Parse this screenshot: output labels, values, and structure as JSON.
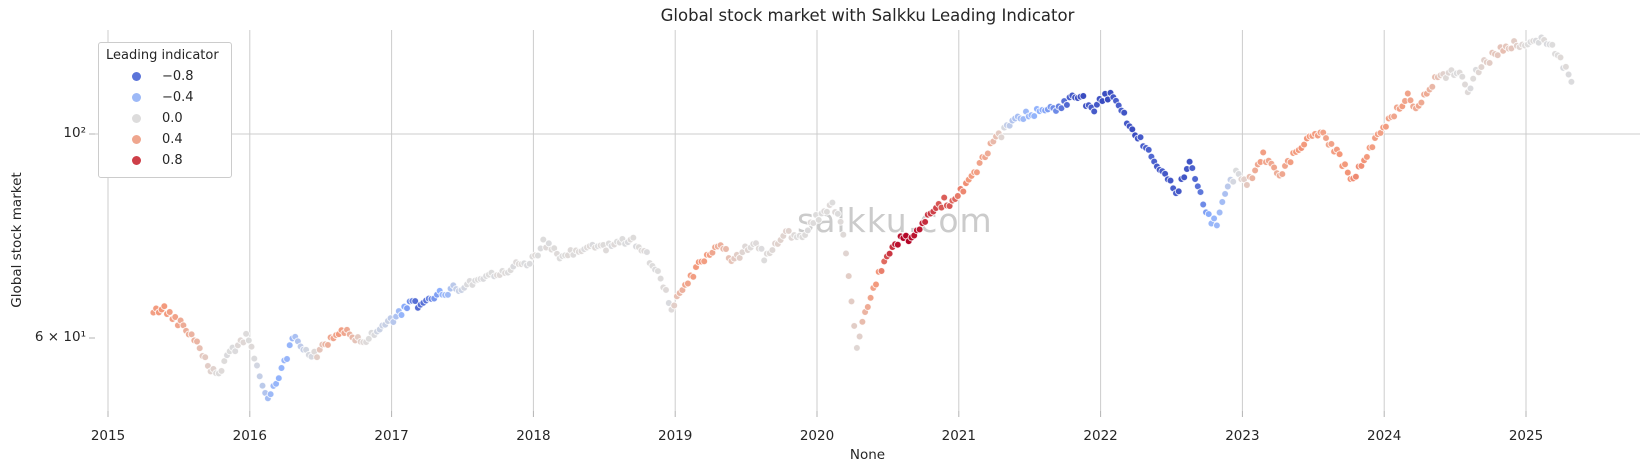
{
  "figure": {
    "watermark": "salkku.com",
    "background_color": "#ffffff",
    "grid_color": "#cccccc",
    "tick_color": "#b3b3b3",
    "text_color": "#262626",
    "watermark_color": "#cbcbcb"
  },
  "chart_data": {
    "type": "scatter",
    "title": "Global stock market with Salkku Leading Indicator",
    "xlabel": "None",
    "ylabel": "Global stock market",
    "y_scale": "log",
    "grid": true,
    "xlim": [
      2015.2,
      2025.8
    ],
    "ylim": [
      50,
      130
    ],
    "x_ticks": [
      2015,
      2016,
      2017,
      2018,
      2019,
      2020,
      2021,
      2022,
      2023,
      2024,
      2025
    ],
    "y_ticks": [
      {
        "label": "10²",
        "value": 100,
        "grid": true
      },
      {
        "label": "6 × 10¹",
        "value": 60,
        "grid": false
      }
    ],
    "legend": {
      "title": "Leading indicator",
      "position": "upper left",
      "entries": [
        {
          "label": "−0.8",
          "value": -0.8,
          "color": "#5b74d9"
        },
        {
          "label": "−0.4",
          "value": -0.4,
          "color": "#9db9f7"
        },
        {
          "label": "0.0",
          "value": 0.0,
          "color": "#dddcdc"
        },
        {
          "label": "0.4",
          "value": 0.4,
          "color": "#efa68e"
        },
        {
          "label": "0.8",
          "value": 0.8,
          "color": "#ce3f48"
        }
      ]
    },
    "colormap": {
      "name": "coolwarm",
      "domain": [
        -1,
        1
      ],
      "anchors": [
        "#3A4CC0",
        "#8DB0FE",
        "#DDDCDC",
        "#F4987A",
        "#B40426"
      ]
    },
    "sampling_note": "weekly dots; keyframes below transcribed from figure as [year_decimal, value, leading_indicator]",
    "points_format": [
      "year_decimal",
      "value",
      "leading_indicator"
    ],
    "points_per_year": 52,
    "points": [
      [
        2015.32,
        63.8,
        0.45
      ],
      [
        2015.38,
        64.8,
        0.5
      ],
      [
        2015.44,
        63.6,
        0.45
      ],
      [
        2015.5,
        62.5,
        0.4
      ],
      [
        2015.56,
        61.2,
        0.35
      ],
      [
        2015.62,
        59.8,
        0.3
      ],
      [
        2015.67,
        57.8,
        0.15
      ],
      [
        2015.72,
        55.6,
        0.08
      ],
      [
        2015.77,
        54.8,
        0.02
      ],
      [
        2015.82,
        56.4,
        0.0
      ],
      [
        2015.87,
        57.8,
        0.0
      ],
      [
        2015.92,
        59.2,
        0.03
      ],
      [
        2015.97,
        60.2,
        0.02
      ],
      [
        2016.02,
        58.4,
        0.0
      ],
      [
        2016.06,
        55.2,
        -0.12
      ],
      [
        2016.1,
        52.8,
        -0.25
      ],
      [
        2016.14,
        51.4,
        -0.4
      ],
      [
        2016.19,
        53.8,
        -0.45
      ],
      [
        2016.24,
        56.2,
        -0.45
      ],
      [
        2016.29,
        59.0,
        -0.42
      ],
      [
        2016.33,
        60.2,
        -0.3
      ],
      [
        2016.38,
        58.4,
        -0.12
      ],
      [
        2016.44,
        57.3,
        -0.02
      ],
      [
        2016.5,
        58.2,
        0.18
      ],
      [
        2016.56,
        59.6,
        0.38
      ],
      [
        2016.62,
        60.9,
        0.45
      ],
      [
        2016.68,
        61.3,
        0.4
      ],
      [
        2016.74,
        59.8,
        0.2
      ],
      [
        2016.8,
        59.3,
        0.03
      ],
      [
        2016.86,
        60.6,
        0.0
      ],
      [
        2016.92,
        61.6,
        -0.1
      ],
      [
        2016.98,
        62.4,
        -0.15
      ],
      [
        2017.04,
        63.4,
        -0.35
      ],
      [
        2017.1,
        64.7,
        -0.55
      ],
      [
        2017.16,
        65.5,
        -0.8
      ],
      [
        2017.22,
        65.1,
        -0.85
      ],
      [
        2017.28,
        66.0,
        -0.72
      ],
      [
        2017.34,
        66.9,
        -0.5
      ],
      [
        2017.4,
        67.6,
        -0.35
      ],
      [
        2017.46,
        67.9,
        -0.15
      ],
      [
        2017.53,
        68.5,
        -0.03
      ],
      [
        2017.61,
        69.5,
        0.0
      ],
      [
        2017.69,
        70.3,
        0.0
      ],
      [
        2017.77,
        71.0,
        0.0
      ],
      [
        2017.85,
        71.6,
        0.0
      ],
      [
        2017.93,
        72.2,
        0.0
      ],
      [
        2018.01,
        73.6,
        0.0
      ],
      [
        2018.07,
        76.2,
        0.0
      ],
      [
        2018.13,
        74.8,
        0.0
      ],
      [
        2018.2,
        73.2,
        0.0
      ],
      [
        2018.28,
        74.2,
        0.0
      ],
      [
        2018.36,
        75.1,
        0.0
      ],
      [
        2018.44,
        75.6,
        0.0
      ],
      [
        2018.52,
        75.2,
        0.0
      ],
      [
        2018.6,
        76.2,
        0.0
      ],
      [
        2018.68,
        77.1,
        0.0
      ],
      [
        2018.74,
        75.8,
        0.0
      ],
      [
        2018.8,
        73.8,
        0.0
      ],
      [
        2018.86,
        71.5,
        0.0
      ],
      [
        2018.92,
        68.5,
        0.0
      ],
      [
        2018.97,
        65.0,
        0.0
      ],
      [
        2019.01,
        65.8,
        0.2
      ],
      [
        2019.06,
        67.8,
        0.38
      ],
      [
        2019.12,
        70.2,
        0.48
      ],
      [
        2019.18,
        72.5,
        0.5
      ],
      [
        2019.24,
        74.3,
        0.45
      ],
      [
        2019.3,
        75.4,
        0.35
      ],
      [
        2019.36,
        74.2,
        0.25
      ],
      [
        2019.41,
        72.6,
        0.15
      ],
      [
        2019.46,
        74.0,
        0.08
      ],
      [
        2019.52,
        75.6,
        0.02
      ],
      [
        2019.58,
        76.2,
        0.0
      ],
      [
        2019.63,
        73.2,
        0.0
      ],
      [
        2019.68,
        74.6,
        0.05
      ],
      [
        2019.74,
        76.6,
        0.1
      ],
      [
        2019.8,
        78.2,
        0.05
      ],
      [
        2019.86,
        77.2,
        0.0
      ],
      [
        2019.92,
        78.6,
        0.0
      ],
      [
        2019.98,
        80.6,
        0.0
      ],
      [
        2020.04,
        82.2,
        0.0
      ],
      [
        2020.1,
        83.8,
        0.0
      ],
      [
        2020.15,
        82.6,
        0.0
      ],
      [
        2020.19,
        77.0,
        0.02
      ],
      [
        2020.23,
        68.0,
        0.1
      ],
      [
        2020.26,
        61.5,
        0.1
      ],
      [
        2020.29,
        58.0,
        0.05
      ],
      [
        2020.32,
        62.5,
        0.22
      ],
      [
        2020.36,
        65.2,
        0.35
      ],
      [
        2020.4,
        68.0,
        0.45
      ],
      [
        2020.44,
        70.8,
        0.55
      ],
      [
        2020.48,
        72.8,
        0.68
      ],
      [
        2020.52,
        74.6,
        0.85
      ],
      [
        2020.57,
        76.2,
        0.95
      ],
      [
        2020.62,
        77.6,
        1.0
      ],
      [
        2020.66,
        76.0,
        1.0
      ],
      [
        2020.7,
        78.2,
        0.95
      ],
      [
        2020.75,
        79.6,
        0.9
      ],
      [
        2020.8,
        81.6,
        0.82
      ],
      [
        2020.85,
        83.2,
        0.75
      ],
      [
        2020.9,
        84.6,
        0.72
      ],
      [
        2020.95,
        84.2,
        0.7
      ],
      [
        2021.0,
        86.2,
        0.6
      ],
      [
        2021.06,
        88.6,
        0.5
      ],
      [
        2021.12,
        91.2,
        0.45
      ],
      [
        2021.18,
        94.2,
        0.4
      ],
      [
        2021.24,
        97.6,
        0.28
      ],
      [
        2021.29,
        99.6,
        0.12
      ],
      [
        2021.34,
        101.2,
        -0.15
      ],
      [
        2021.4,
        103.0,
        -0.3
      ],
      [
        2021.46,
        104.6,
        -0.4
      ],
      [
        2021.52,
        105.2,
        -0.45
      ],
      [
        2021.58,
        105.9,
        -0.52
      ],
      [
        2021.64,
        106.6,
        -0.62
      ],
      [
        2021.7,
        107.3,
        -0.72
      ],
      [
        2021.76,
        108.6,
        -0.85
      ],
      [
        2021.82,
        110.1,
        -0.95
      ],
      [
        2021.88,
        109.2,
        -1.0
      ],
      [
        2021.93,
        105.6,
        -0.92
      ],
      [
        2021.98,
        107.6,
        -0.95
      ],
      [
        2022.03,
        109.6,
        -1.0
      ],
      [
        2022.08,
        110.1,
        -0.95
      ],
      [
        2022.13,
        107.2,
        -0.9
      ],
      [
        2022.18,
        103.6,
        -0.95
      ],
      [
        2022.24,
        100.2,
        -1.0
      ],
      [
        2022.3,
        97.6,
        -0.92
      ],
      [
        2022.36,
        94.6,
        -0.88
      ],
      [
        2022.42,
        92.2,
        -0.92
      ],
      [
        2022.48,
        89.2,
        -0.95
      ],
      [
        2022.54,
        86.2,
        -0.9
      ],
      [
        2022.58,
        89.5,
        -0.98
      ],
      [
        2022.62,
        93.8,
        -0.95
      ],
      [
        2022.66,
        90.5,
        -0.9
      ],
      [
        2022.7,
        87.0,
        -0.8
      ],
      [
        2022.74,
        83.2,
        -0.6
      ],
      [
        2022.78,
        80.8,
        -0.45
      ],
      [
        2022.82,
        80.2,
        -0.4
      ],
      [
        2022.86,
        83.6,
        -0.38
      ],
      [
        2022.9,
        87.6,
        -0.2
      ],
      [
        2022.94,
        90.0,
        -0.06
      ],
      [
        2022.98,
        91.2,
        0.0
      ],
      [
        2023.02,
        88.4,
        0.1
      ],
      [
        2023.06,
        89.8,
        0.25
      ],
      [
        2023.1,
        92.6,
        0.4
      ],
      [
        2023.15,
        94.6,
        0.45
      ],
      [
        2023.2,
        92.2,
        0.4
      ],
      [
        2023.25,
        89.8,
        0.35
      ],
      [
        2023.3,
        92.2,
        0.4
      ],
      [
        2023.35,
        94.6,
        0.45
      ],
      [
        2023.41,
        97.2,
        0.5
      ],
      [
        2023.47,
        99.2,
        0.5
      ],
      [
        2023.53,
        100.6,
        0.45
      ],
      [
        2023.59,
        99.0,
        0.4
      ],
      [
        2023.65,
        96.2,
        0.45
      ],
      [
        2023.71,
        92.8,
        0.5
      ],
      [
        2023.77,
        89.2,
        0.5
      ],
      [
        2023.83,
        92.2,
        0.55
      ],
      [
        2023.89,
        95.8,
        0.5
      ],
      [
        2023.95,
        99.2,
        0.45
      ],
      [
        2024.01,
        102.2,
        0.45
      ],
      [
        2024.07,
        104.8,
        0.4
      ],
      [
        2024.13,
        107.8,
        0.45
      ],
      [
        2024.17,
        110.6,
        0.4
      ],
      [
        2024.21,
        105.6,
        0.35
      ],
      [
        2024.26,
        108.6,
        0.4
      ],
      [
        2024.31,
        112.2,
        0.35
      ],
      [
        2024.37,
        114.6,
        0.2
      ],
      [
        2024.43,
        115.6,
        0.05
      ],
      [
        2024.49,
        116.6,
        0.0
      ],
      [
        2024.55,
        115.2,
        0.0
      ],
      [
        2024.6,
        110.2,
        0.0
      ],
      [
        2024.65,
        117.0,
        0.0
      ],
      [
        2024.71,
        119.6,
        0.1
      ],
      [
        2024.77,
        121.6,
        0.15
      ],
      [
        2024.83,
        123.6,
        0.2
      ],
      [
        2024.89,
        124.6,
        0.15
      ],
      [
        2024.95,
        125.2,
        0.05
      ],
      [
        2025.01,
        125.2,
        0.0
      ],
      [
        2025.07,
        126.0,
        0.0
      ],
      [
        2025.13,
        126.5,
        0.0
      ],
      [
        2025.18,
        124.6,
        0.0
      ],
      [
        2025.23,
        121.2,
        0.0
      ],
      [
        2025.28,
        117.6,
        0.0
      ],
      [
        2025.33,
        113.8,
        0.0
      ]
    ]
  }
}
